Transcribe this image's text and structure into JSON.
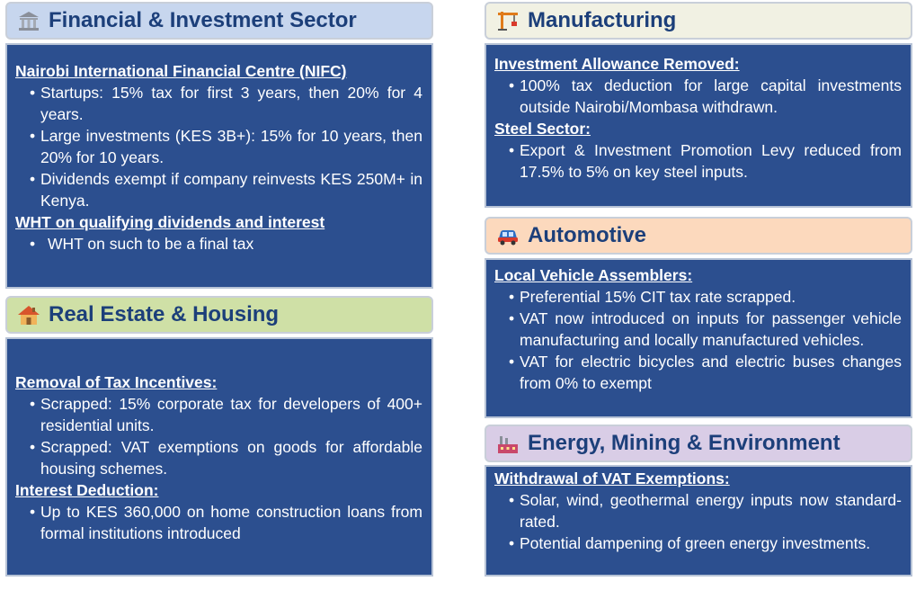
{
  "financial": {
    "title": "Financial & Investment Sector",
    "icon": "bank-icon",
    "sections": [
      {
        "heading": "Nairobi International Financial Centre (NIFC)",
        "bullets": [
          "Startups: 15% tax for first 3 years, then 20% for 4 years.",
          "Large investments (KES 3B+): 15% for 10 years, then 20% for 10 years.",
          "Dividends exempt if company reinvests KES 250M+ in Kenya."
        ]
      },
      {
        "heading": "WHT on qualifying dividends and interest",
        "bullets": [
          "WHT on such to be a final tax"
        ]
      }
    ]
  },
  "real_estate": {
    "title": "Real Estate & Housing",
    "icon": "house-icon",
    "sections": [
      {
        "heading": "Removal of Tax Incentives:",
        "bullets": [
          "Scrapped: 15% corporate tax for developers of 400+ residential units.",
          "Scrapped: VAT exemptions on goods for affordable housing schemes."
        ]
      },
      {
        "heading": "Interest Deduction:",
        "bullets": [
          "Up to KES 360,000 on home construction loans from formal institutions introduced"
        ]
      }
    ]
  },
  "manufacturing": {
    "title": "Manufacturing",
    "icon": "crane-icon",
    "sections": [
      {
        "heading": "Investment Allowance Removed:",
        "bullets": [
          "100% tax deduction for large capital investments outside Nairobi/Mombasa withdrawn."
        ]
      },
      {
        "heading": "Steel Sector:",
        "bullets": [
          "Export & Investment Promotion Levy reduced from 17.5% to 5% on key steel inputs."
        ]
      }
    ]
  },
  "automotive": {
    "title": "Automotive",
    "icon": "car-icon",
    "sections": [
      {
        "heading": "Local Vehicle Assemblers:",
        "bullets": [
          "Preferential 15% CIT tax rate scrapped.",
          "VAT now introduced on inputs for passenger vehicle manufacturing and locally manufactured vehicles.",
          "VAT for electric bicycles and electric buses changes from 0% to exempt"
        ]
      }
    ]
  },
  "energy": {
    "title": "Energy, Mining & Environment",
    "icon": "factory-icon",
    "sections": [
      {
        "heading": "Withdrawal of VAT Exemptions:",
        "bullets": [
          "Solar, wind, geothermal energy inputs now standard-rated.",
          "Potential dampening of green energy investments."
        ]
      }
    ]
  },
  "bullet_glyph": "•"
}
